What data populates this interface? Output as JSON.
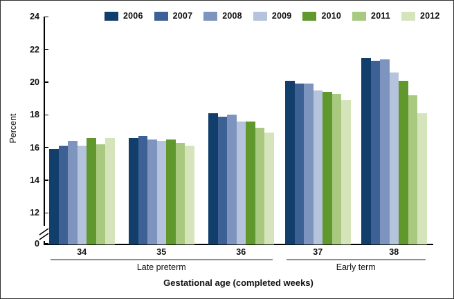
{
  "chart_data": {
    "type": "bar",
    "title": "",
    "ylabel": "Percent",
    "xlabel": "Gestational age (completed weeks)",
    "categories": [
      "34",
      "35",
      "36",
      "37",
      "38"
    ],
    "series": [
      {
        "name": "2006",
        "color": "#123e6c",
        "values": [
          15.9,
          16.6,
          18.1,
          20.1,
          21.5
        ]
      },
      {
        "name": "2007",
        "color": "#3d6195",
        "values": [
          16.1,
          16.7,
          17.9,
          19.9,
          21.3
        ]
      },
      {
        "name": "2008",
        "color": "#7d94bf",
        "values": [
          16.4,
          16.5,
          18.0,
          19.9,
          21.4
        ]
      },
      {
        "name": "2009",
        "color": "#b6c3dc",
        "values": [
          16.1,
          16.4,
          17.6,
          19.5,
          20.6
        ]
      },
      {
        "name": "2010",
        "color": "#60982e",
        "values": [
          16.6,
          16.5,
          17.6,
          19.4,
          20.1
        ]
      },
      {
        "name": "2011",
        "color": "#a8c97f",
        "values": [
          16.2,
          16.3,
          17.2,
          19.3,
          19.2
        ]
      },
      {
        "name": "2012",
        "color": "#d6e4bc",
        "values": [
          16.6,
          16.1,
          16.9,
          18.9,
          18.1
        ]
      }
    ],
    "y_ticks": [
      0,
      12,
      14,
      16,
      18,
      20,
      22,
      24
    ],
    "ylim": [
      0,
      24
    ],
    "axis_break_between": [
      0,
      12
    ],
    "grid": false,
    "legend_position": "top",
    "category_groups": [
      {
        "label": "Late preterm",
        "from": "34",
        "to": "36"
      },
      {
        "label": "Early term",
        "from": "37",
        "to": "38"
      }
    ]
  }
}
